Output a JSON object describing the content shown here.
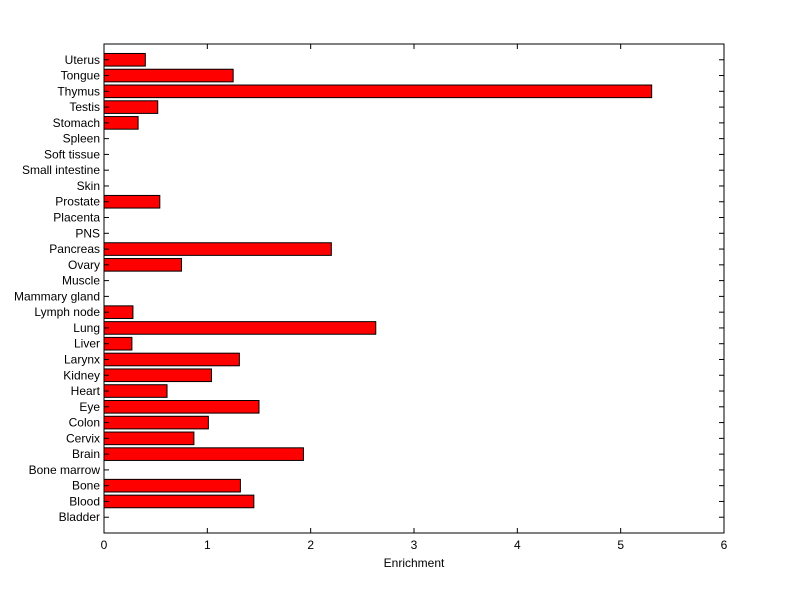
{
  "chart_data": {
    "type": "bar",
    "orientation": "horizontal",
    "xlabel": "Enrichment",
    "ylabel": "",
    "xlim": [
      0,
      6
    ],
    "xticks": [
      0,
      1,
      2,
      3,
      4,
      5,
      6
    ],
    "grid": false,
    "bar_color": "#ff0000",
    "categories": [
      "Uterus",
      "Tongue",
      "Thymus",
      "Testis",
      "Stomach",
      "Spleen",
      "Soft tissue",
      "Small intestine",
      "Skin",
      "Prostate",
      "Placenta",
      "PNS",
      "Pancreas",
      "Ovary",
      "Muscle",
      "Mammary gland",
      "Lymph node",
      "Lung",
      "Liver",
      "Larynx",
      "Kidney",
      "Heart",
      "Eye",
      "Colon",
      "Cervix",
      "Brain",
      "Bone marrow",
      "Bone",
      "Blood",
      "Bladder"
    ],
    "values": [
      0.4,
      1.25,
      5.3,
      0.52,
      0.33,
      0,
      0,
      0,
      0,
      0.54,
      0,
      0,
      2.2,
      0.75,
      0,
      0,
      0.28,
      2.63,
      0.27,
      1.31,
      1.04,
      0.61,
      1.5,
      1.01,
      0.87,
      1.93,
      0,
      1.32,
      1.45,
      0
    ]
  }
}
